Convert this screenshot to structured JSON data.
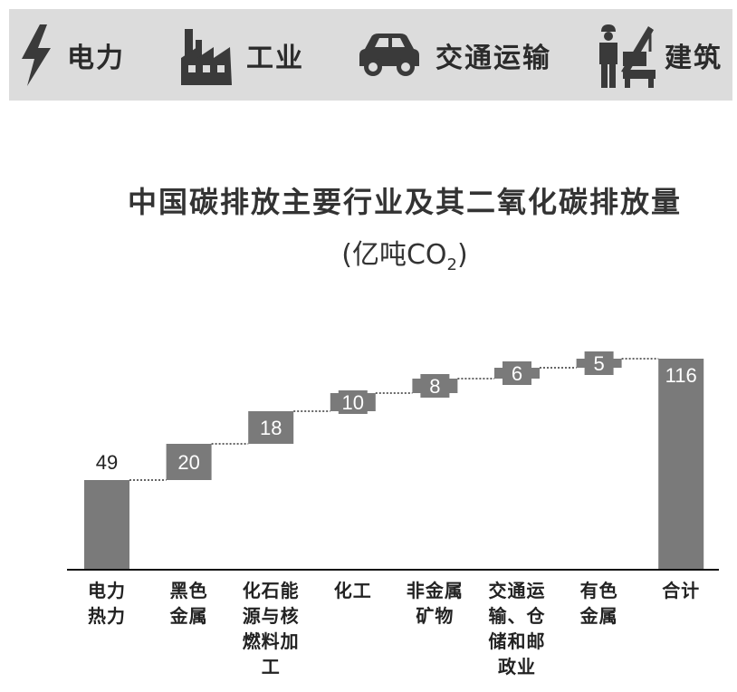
{
  "sectors": [
    {
      "label": "电力",
      "icon": "lightning-icon"
    },
    {
      "label": "工业",
      "icon": "factory-icon"
    },
    {
      "label": "交通运输",
      "icon": "car-icon"
    },
    {
      "label": "建筑",
      "icon": "construction-icon"
    }
  ],
  "chart_data": {
    "type": "bar",
    "subtype": "waterfall",
    "title": "中国碳排放主要行业及其二氧化碳排放量",
    "subtitle_main": "(亿吨CO",
    "subtitle_sub": "2",
    "subtitle_close": ")",
    "categories": [
      [
        "电力",
        "热力"
      ],
      [
        "黑色",
        "金属"
      ],
      [
        "化石能",
        "源与核",
        "燃料加",
        "工"
      ],
      [
        "化工"
      ],
      [
        "非金属",
        "矿物"
      ],
      [
        "交通运",
        "输、仓",
        "储和邮",
        "政业"
      ],
      [
        "有色",
        "金属"
      ],
      [
        "合计"
      ]
    ],
    "values": [
      49,
      20,
      18,
      10,
      8,
      6,
      5,
      116
    ],
    "total_index": 7,
    "ylim": [
      0,
      116
    ],
    "colors": {
      "bar": "#7a7a7a",
      "label_on_bar": "#ffffff",
      "label_above": "#222222"
    }
  }
}
